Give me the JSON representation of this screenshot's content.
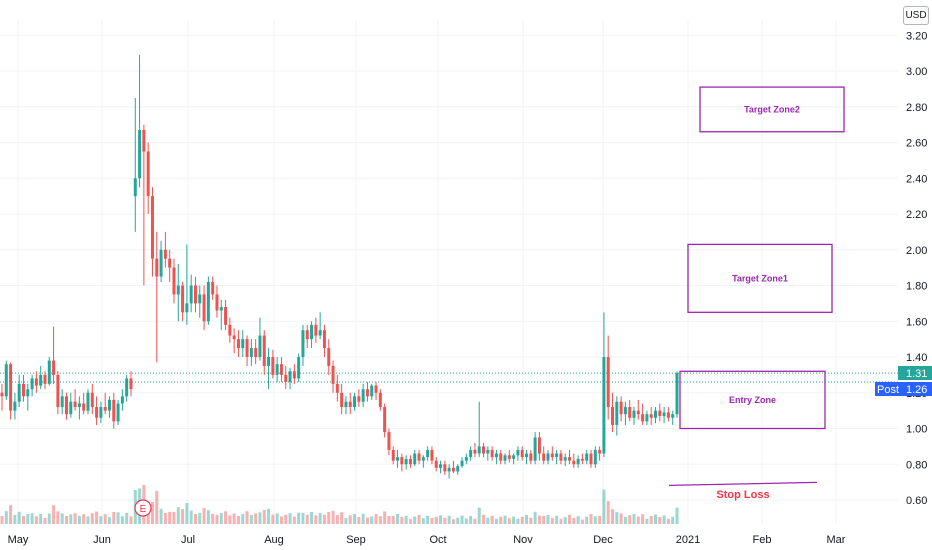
{
  "currency_label": "USD",
  "colors": {
    "up": "#26a69a",
    "down": "#ef5350",
    "zone": "#9c27b0",
    "stop": "#f23645",
    "price_badge": "#26a69a",
    "post_badge": "#2962ff",
    "grid": "#f0f3fa"
  },
  "badges": {
    "price": "1.31",
    "post_label": "Post",
    "post_value": "1.26"
  },
  "earnings_marker": "E",
  "chart_data": {
    "type": "candlestick",
    "title": "",
    "ylim": [
      0.5,
      3.25
    ],
    "yticks": [
      "3.20",
      "3.00",
      "2.80",
      "2.60",
      "2.40",
      "2.20",
      "2.00",
      "1.80",
      "1.60",
      "1.40",
      "1.20",
      "1.00",
      "0.80",
      "0.60"
    ],
    "xticks": [
      "May",
      "Jun",
      "Jul",
      "Aug",
      "Sep",
      "Oct",
      "Nov",
      "Dec",
      "2021",
      "Feb",
      "Mar"
    ],
    "grid": true,
    "reference_lines": [
      1.31,
      1.26
    ],
    "zones": [
      {
        "label": "Target Zone2",
        "from": 2.66,
        "to": 2.91
      },
      {
        "label": "Target Zone1",
        "from": 1.65,
        "to": 2.03
      },
      {
        "label": "Entry Zone",
        "from": 1.0,
        "to": 1.32
      },
      {
        "label": "Stop Loss",
        "level": 0.69
      }
    ],
    "candles": [
      [
        1.2,
        1.25,
        1.1,
        1.18
      ],
      [
        1.18,
        1.38,
        1.16,
        1.36
      ],
      [
        1.36,
        1.37,
        1.05,
        1.1
      ],
      [
        1.1,
        1.2,
        1.05,
        1.15
      ],
      [
        1.15,
        1.3,
        1.12,
        1.25
      ],
      [
        1.25,
        1.3,
        1.15,
        1.18
      ],
      [
        1.18,
        1.25,
        1.1,
        1.22
      ],
      [
        1.22,
        1.3,
        1.18,
        1.28
      ],
      [
        1.28,
        1.32,
        1.2,
        1.24
      ],
      [
        1.24,
        1.35,
        1.22,
        1.3
      ],
      [
        1.3,
        1.32,
        1.22,
        1.25
      ],
      [
        1.25,
        1.4,
        1.24,
        1.38
      ],
      [
        1.38,
        1.57,
        1.25,
        1.3
      ],
      [
        1.3,
        1.32,
        1.08,
        1.12
      ],
      [
        1.12,
        1.22,
        1.08,
        1.18
      ],
      [
        1.18,
        1.2,
        1.05,
        1.08
      ],
      [
        1.08,
        1.2,
        1.06,
        1.15
      ],
      [
        1.15,
        1.22,
        1.1,
        1.12
      ],
      [
        1.12,
        1.18,
        1.05,
        1.14
      ],
      [
        1.14,
        1.2,
        1.08,
        1.1
      ],
      [
        1.1,
        1.22,
        1.08,
        1.2
      ],
      [
        1.2,
        1.25,
        1.08,
        1.12
      ],
      [
        1.12,
        1.18,
        1.02,
        1.06
      ],
      [
        1.06,
        1.15,
        1.03,
        1.12
      ],
      [
        1.12,
        1.2,
        1.08,
        1.1
      ],
      [
        1.1,
        1.18,
        1.06,
        1.16
      ],
      [
        1.16,
        1.2,
        1.0,
        1.04
      ],
      [
        1.04,
        1.16,
        1.02,
        1.14
      ],
      [
        1.14,
        1.22,
        1.1,
        1.18
      ],
      [
        1.18,
        1.3,
        1.15,
        1.28
      ],
      [
        1.28,
        1.32,
        1.18,
        1.22
      ],
      [
        2.3,
        2.85,
        2.1,
        2.4
      ],
      [
        2.4,
        3.09,
        2.35,
        2.67
      ],
      [
        2.67,
        2.7,
        1.8,
        2.55
      ],
      [
        2.55,
        2.6,
        2.2,
        2.3
      ],
      [
        2.3,
        2.35,
        1.85,
        1.95
      ],
      [
        1.95,
        2.1,
        1.37,
        1.85
      ],
      [
        1.85,
        2.05,
        1.82,
        2.0
      ],
      [
        2.0,
        2.1,
        1.9,
        1.95
      ],
      [
        1.95,
        2.0,
        1.82,
        1.9
      ],
      [
        1.9,
        1.95,
        1.7,
        1.75
      ],
      [
        1.75,
        1.92,
        1.6,
        1.8
      ],
      [
        1.8,
        1.82,
        1.6,
        1.65
      ],
      [
        1.65,
        2.03,
        1.58,
        1.7
      ],
      [
        1.7,
        1.86,
        1.65,
        1.8
      ],
      [
        1.8,
        1.85,
        1.65,
        1.7
      ],
      [
        1.7,
        1.8,
        1.62,
        1.75
      ],
      [
        1.75,
        1.8,
        1.55,
        1.6
      ],
      [
        1.6,
        1.85,
        1.58,
        1.82
      ],
      [
        1.82,
        1.85,
        1.72,
        1.75
      ],
      [
        1.75,
        1.8,
        1.62,
        1.66
      ],
      [
        1.66,
        1.72,
        1.55,
        1.68
      ],
      [
        1.68,
        1.72,
        1.55,
        1.58
      ],
      [
        1.58,
        1.62,
        1.48,
        1.52
      ],
      [
        1.52,
        1.56,
        1.42,
        1.5
      ],
      [
        1.5,
        1.55,
        1.4,
        1.45
      ],
      [
        1.45,
        1.55,
        1.4,
        1.5
      ],
      [
        1.5,
        1.52,
        1.35,
        1.4
      ],
      [
        1.4,
        1.5,
        1.35,
        1.45
      ],
      [
        1.45,
        1.5,
        1.36,
        1.4
      ],
      [
        1.4,
        1.62,
        1.38,
        1.52
      ],
      [
        1.52,
        1.55,
        1.3,
        1.35
      ],
      [
        1.35,
        1.45,
        1.22,
        1.4
      ],
      [
        1.4,
        1.44,
        1.28,
        1.3
      ],
      [
        1.3,
        1.4,
        1.26,
        1.36
      ],
      [
        1.36,
        1.4,
        1.26,
        1.3
      ],
      [
        1.3,
        1.35,
        1.22,
        1.26
      ],
      [
        1.26,
        1.34,
        1.22,
        1.32
      ],
      [
        1.32,
        1.36,
        1.25,
        1.28
      ],
      [
        1.28,
        1.42,
        1.26,
        1.4
      ],
      [
        1.4,
        1.58,
        1.35,
        1.55
      ],
      [
        1.55,
        1.58,
        1.45,
        1.5
      ],
      [
        1.5,
        1.6,
        1.45,
        1.58
      ],
      [
        1.58,
        1.62,
        1.48,
        1.52
      ],
      [
        1.52,
        1.65,
        1.5,
        1.55
      ],
      [
        1.55,
        1.58,
        1.4,
        1.45
      ],
      [
        1.45,
        1.5,
        1.3,
        1.35
      ],
      [
        1.35,
        1.38,
        1.2,
        1.25
      ],
      [
        1.25,
        1.3,
        1.15,
        1.2
      ],
      [
        1.2,
        1.25,
        1.08,
        1.12
      ],
      [
        1.12,
        1.18,
        1.08,
        1.15
      ],
      [
        1.15,
        1.2,
        1.08,
        1.12
      ],
      [
        1.12,
        1.2,
        1.1,
        1.18
      ],
      [
        1.18,
        1.22,
        1.12,
        1.15
      ],
      [
        1.15,
        1.25,
        1.12,
        1.22
      ],
      [
        1.22,
        1.26,
        1.15,
        1.18
      ],
      [
        1.18,
        1.25,
        1.16,
        1.24
      ],
      [
        1.24,
        1.26,
        1.16,
        1.2
      ],
      [
        1.2,
        1.22,
        1.1,
        1.12
      ],
      [
        1.12,
        1.14,
        0.95,
        0.98
      ],
      [
        0.98,
        1.0,
        0.85,
        0.88
      ],
      [
        0.88,
        0.9,
        0.8,
        0.82
      ],
      [
        0.82,
        0.88,
        0.78,
        0.84
      ],
      [
        0.84,
        0.86,
        0.76,
        0.8
      ],
      [
        0.8,
        0.85,
        0.77,
        0.83
      ],
      [
        0.83,
        0.85,
        0.78,
        0.8
      ],
      [
        0.8,
        0.88,
        0.79,
        0.86
      ],
      [
        0.86,
        0.88,
        0.8,
        0.82
      ],
      [
        0.82,
        0.85,
        0.78,
        0.84
      ],
      [
        0.84,
        0.9,
        0.82,
        0.88
      ],
      [
        0.88,
        0.9,
        0.8,
        0.82
      ],
      [
        0.82,
        0.84,
        0.76,
        0.78
      ],
      [
        0.78,
        0.82,
        0.75,
        0.8
      ],
      [
        0.8,
        0.82,
        0.74,
        0.76
      ],
      [
        0.76,
        0.8,
        0.72,
        0.78
      ],
      [
        0.78,
        0.82,
        0.75,
        0.76
      ],
      [
        0.76,
        0.8,
        0.74,
        0.79
      ],
      [
        0.79,
        0.84,
        0.78,
        0.82
      ],
      [
        0.82,
        0.86,
        0.8,
        0.84
      ],
      [
        0.84,
        0.9,
        0.82,
        0.88
      ],
      [
        0.88,
        0.92,
        0.84,
        0.86
      ],
      [
        0.86,
        1.15,
        0.84,
        0.9
      ],
      [
        0.9,
        0.92,
        0.84,
        0.86
      ],
      [
        0.86,
        0.9,
        0.82,
        0.88
      ],
      [
        0.88,
        0.9,
        0.82,
        0.84
      ],
      [
        0.84,
        0.88,
        0.8,
        0.86
      ],
      [
        0.86,
        0.88,
        0.8,
        0.82
      ],
      [
        0.82,
        0.86,
        0.8,
        0.85
      ],
      [
        0.85,
        0.88,
        0.81,
        0.83
      ],
      [
        0.83,
        0.86,
        0.8,
        0.85
      ],
      [
        0.85,
        0.9,
        0.82,
        0.88
      ],
      [
        0.88,
        0.9,
        0.82,
        0.84
      ],
      [
        0.84,
        0.88,
        0.8,
        0.86
      ],
      [
        0.86,
        0.88,
        0.8,
        0.82
      ],
      [
        0.82,
        0.98,
        0.8,
        0.95
      ],
      [
        0.95,
        0.98,
        0.82,
        0.86
      ],
      [
        0.86,
        0.9,
        0.8,
        0.82
      ],
      [
        0.82,
        0.88,
        0.8,
        0.86
      ],
      [
        0.86,
        0.9,
        0.82,
        0.84
      ],
      [
        0.84,
        0.88,
        0.8,
        0.86
      ],
      [
        0.86,
        0.88,
        0.8,
        0.82
      ],
      [
        0.82,
        0.86,
        0.79,
        0.84
      ],
      [
        0.84,
        0.88,
        0.8,
        0.82
      ],
      [
        0.82,
        0.86,
        0.78,
        0.8
      ],
      [
        0.8,
        0.85,
        0.78,
        0.83
      ],
      [
        0.83,
        0.86,
        0.8,
        0.82
      ],
      [
        0.82,
        0.88,
        0.8,
        0.86
      ],
      [
        0.86,
        0.88,
        0.78,
        0.8
      ],
      [
        0.8,
        0.9,
        0.78,
        0.88
      ],
      [
        0.88,
        0.9,
        0.82,
        0.86
      ],
      [
        0.86,
        1.65,
        0.84,
        1.4
      ],
      [
        1.4,
        1.52,
        1.05,
        1.12
      ],
      [
        1.12,
        1.2,
        0.98,
        1.02
      ],
      [
        1.02,
        1.18,
        0.96,
        1.15
      ],
      [
        1.15,
        1.18,
        1.04,
        1.08
      ],
      [
        1.08,
        1.15,
        1.02,
        1.12
      ],
      [
        1.12,
        1.16,
        1.04,
        1.06
      ],
      [
        1.06,
        1.12,
        1.02,
        1.1
      ],
      [
        1.1,
        1.16,
        1.05,
        1.08
      ],
      [
        1.08,
        1.14,
        1.02,
        1.04
      ],
      [
        1.04,
        1.1,
        1.02,
        1.08
      ],
      [
        1.08,
        1.12,
        1.02,
        1.06
      ],
      [
        1.06,
        1.12,
        1.03,
        1.1
      ],
      [
        1.1,
        1.14,
        1.04,
        1.07
      ],
      [
        1.07,
        1.12,
        1.03,
        1.09
      ],
      [
        1.09,
        1.12,
        1.04,
        1.06
      ],
      [
        1.06,
        1.1,
        1.02,
        1.08
      ],
      [
        1.08,
        1.32,
        1.06,
        1.31
      ]
    ]
  }
}
